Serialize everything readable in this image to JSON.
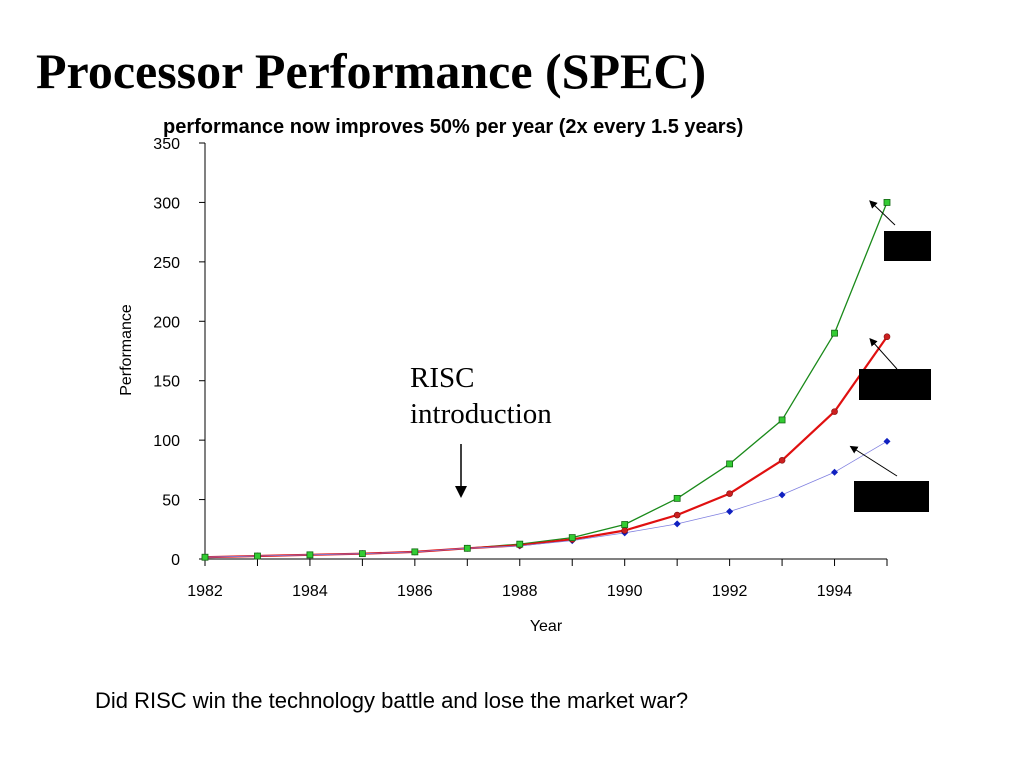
{
  "slide": {
    "title": "Processor Performance (SPEC)",
    "question": "Did RISC win the technology battle and lose the market war?"
  },
  "annotation": {
    "line1": "RISC",
    "line2": "introduction"
  },
  "colors": {
    "green_series": "#1a8a1a",
    "red_series": "#e01010",
    "blue_series": "#8080e0",
    "green_marker": "#33cc33",
    "red_marker": "#cc2020",
    "blue_marker": "#1020c0"
  },
  "chart_data": {
    "type": "line",
    "title": "performance now improves  50% per year (2x every 1.5 years)",
    "xlabel": "Year",
    "ylabel": "Performance",
    "xlim": [
      1982,
      1995
    ],
    "ylim": [
      0,
      350
    ],
    "xticks": [
      1982,
      1983,
      1984,
      1985,
      1986,
      1987,
      1988,
      1989,
      1990,
      1991,
      1992,
      1993,
      1994,
      1995
    ],
    "xtick_labels": [
      "1982",
      "1984",
      "1986",
      "1988",
      "1990",
      "1992",
      "1994"
    ],
    "yticks": [
      0,
      50,
      100,
      150,
      200,
      250,
      300,
      350
    ],
    "grid": false,
    "x": [
      1982,
      1983,
      1984,
      1985,
      1986,
      1987,
      1988,
      1989,
      1990,
      1991,
      1992,
      1993,
      1994,
      1995
    ],
    "series": [
      {
        "values": [
          1.5,
          2.5,
          3.5,
          4.5,
          6,
          9,
          12.5,
          18,
          29,
          51,
          80,
          117,
          190,
          300
        ]
      },
      {
        "values": [
          1.5,
          2.5,
          3.5,
          4.5,
          6,
          9,
          11.5,
          16.5,
          24,
          37,
          55,
          83,
          124,
          187
        ]
      },
      {
        "values": [
          1.5,
          2.5,
          3.5,
          4.5,
          6,
          9,
          11,
          15.5,
          22,
          29.5,
          40,
          54,
          73,
          99
        ]
      }
    ]
  }
}
